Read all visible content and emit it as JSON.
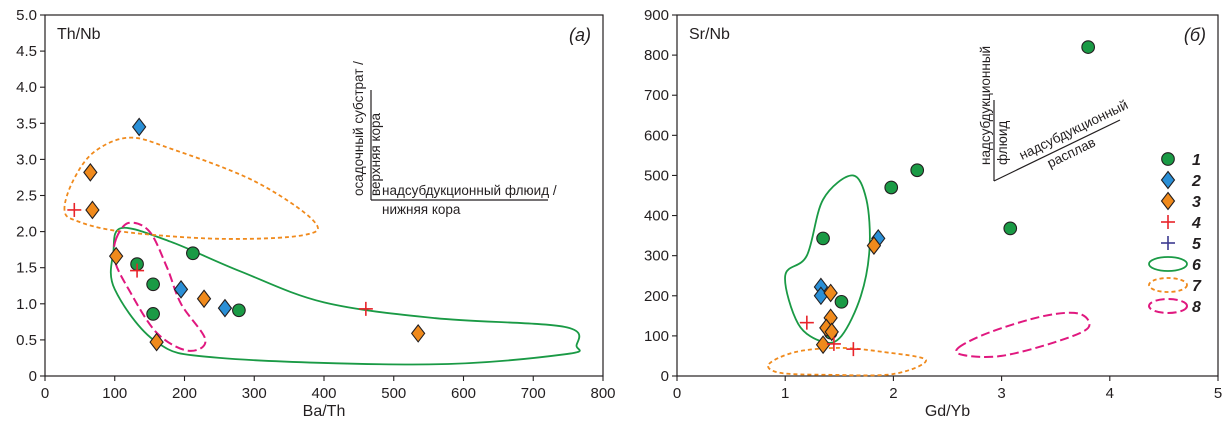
{
  "colors": {
    "circle": "#1a9a45",
    "blue_diamond": "#2a8fd6",
    "orange_diamond": "#f08a1c",
    "cross_red": "#e8232a",
    "cross_purple": "#3c3a8f",
    "field_green": "#1a9a45",
    "field_orange": "#f08a1c",
    "field_magenta": "#e0187f",
    "axis": "#231f20"
  },
  "legend": {
    "items": [
      {
        "symbol": "circle",
        "label": "1"
      },
      {
        "symbol": "blue_diamond",
        "label": "2"
      },
      {
        "symbol": "orange_diamond",
        "label": "3"
      },
      {
        "symbol": "cross_red",
        "label": "4"
      },
      {
        "symbol": "cross_purple",
        "label": "5"
      },
      {
        "symbol": "field_green",
        "label": "6"
      },
      {
        "symbol": "field_orange",
        "label": "7"
      },
      {
        "symbol": "field_magenta",
        "label": "8"
      }
    ]
  },
  "chart_data": [
    {
      "type": "scatter",
      "panel_label": "(а)",
      "ylabel_inside": "Th/Nb",
      "xlabel": "Ba/Th",
      "xlim": [
        0,
        800
      ],
      "ylim": [
        0,
        5.0
      ],
      "x_ticks": [
        "0",
        "100",
        "200",
        "300",
        "400",
        "500",
        "600",
        "700",
        "800"
      ],
      "y_ticks": [
        "0",
        "0.5",
        "1.0",
        "1.5",
        "2.0",
        "2.5",
        "3.0",
        "3.5",
        "4.0",
        "4.5",
        "5.0"
      ],
      "annotations": {
        "vertical_line1": "осадочный субстрат /",
        "vertical_line2": "верхняя кора",
        "horizontal_line1": "надсубдукционный флюид /",
        "horizontal_line2": "нижняя кора"
      },
      "series": [
        {
          "symbol": "circle",
          "points": [
            [
              132,
              1.55
            ],
            [
              155,
              1.27
            ],
            [
              155,
              0.86
            ],
            [
              212,
              1.7
            ],
            [
              278,
              0.91
            ]
          ]
        },
        {
          "symbol": "blue_diamond",
          "points": [
            [
              135,
              3.45
            ],
            [
              195,
              1.2
            ],
            [
              258,
              0.94
            ]
          ]
        },
        {
          "symbol": "orange_diamond",
          "points": [
            [
              65,
              2.82
            ],
            [
              68,
              2.3
            ],
            [
              102,
              1.66
            ],
            [
              160,
              0.47
            ],
            [
              228,
              1.07
            ],
            [
              535,
              0.59
            ]
          ]
        },
        {
          "symbol": "cross_red",
          "points": [
            [
              42,
              2.3
            ],
            [
              132,
              1.46
            ],
            [
              460,
              0.93
            ]
          ]
        }
      ],
      "fields": [
        {
          "symbol": "field_green",
          "points": [
            [
              98,
              1.72
            ],
            [
              110,
              2.05
            ],
            [
              180,
              1.86
            ],
            [
              280,
              1.45
            ],
            [
              400,
              1.02
            ],
            [
              560,
              0.8
            ],
            [
              745,
              0.68
            ],
            [
              762,
              0.42
            ],
            [
              745,
              0.3
            ],
            [
              550,
              0.16
            ],
            [
              250,
              0.25
            ],
            [
              160,
              0.47
            ],
            [
              100,
              1.2
            ]
          ]
        },
        {
          "symbol": "field_orange",
          "points": [
            [
              28,
              2.3
            ],
            [
              40,
              2.7
            ],
            [
              70,
              3.1
            ],
            [
              120,
              3.3
            ],
            [
              180,
              3.15
            ],
            [
              300,
              2.7
            ],
            [
              385,
              2.15
            ],
            [
              370,
              1.95
            ],
            [
              250,
              1.9
            ],
            [
              110,
              2.0
            ],
            [
              45,
              2.15
            ]
          ]
        },
        {
          "symbol": "field_magenta",
          "points": [
            [
              102,
              1.9
            ],
            [
              120,
              2.12
            ],
            [
              150,
              2.0
            ],
            [
              175,
              1.5
            ],
            [
              195,
              1.0
            ],
            [
              230,
              0.5
            ],
            [
              205,
              0.35
            ],
            [
              160,
              0.6
            ],
            [
              120,
              1.2
            ],
            [
              100,
              1.6
            ]
          ]
        }
      ]
    },
    {
      "type": "scatter",
      "panel_label": "(б)",
      "ylabel_inside": "Sr/Nb",
      "xlabel": "Gd/Yb",
      "xlim": [
        0,
        5
      ],
      "ylim": [
        0,
        900
      ],
      "x_ticks": [
        "0",
        "1",
        "2",
        "3",
        "4",
        "5"
      ],
      "y_ticks": [
        "0",
        "100",
        "200",
        "300",
        "400",
        "500",
        "600",
        "700",
        "800",
        "900"
      ],
      "annotations": {
        "vertical_line1": "надсубдукционный",
        "vertical_line2": "флюид",
        "diagonal_line1": "надсубдукционный",
        "diagonal_line2": "расплав"
      },
      "series": [
        {
          "symbol": "circle",
          "points": [
            [
              1.35,
              343
            ],
            [
              1.52,
              185
            ],
            [
              1.42,
              108
            ],
            [
              1.98,
              470
            ],
            [
              2.22,
              513
            ],
            [
              3.08,
              368
            ],
            [
              3.8,
              820
            ]
          ]
        },
        {
          "symbol": "blue_diamond",
          "points": [
            [
              1.33,
              222
            ],
            [
              1.33,
              200
            ],
            [
              1.86,
              343
            ]
          ]
        },
        {
          "symbol": "orange_diamond",
          "points": [
            [
              1.42,
              207
            ],
            [
              1.42,
              145
            ],
            [
              1.38,
              120
            ],
            [
              1.43,
              110
            ],
            [
              1.35,
              78
            ],
            [
              1.82,
              325
            ]
          ]
        },
        {
          "symbol": "cross_red",
          "points": [
            [
              1.2,
              133
            ],
            [
              1.45,
              80
            ],
            [
              1.63,
              67
            ]
          ]
        }
      ],
      "fields": [
        {
          "symbol": "field_green",
          "points": [
            [
              1.2,
              300
            ],
            [
              1.35,
              440
            ],
            [
              1.62,
              500
            ],
            [
              1.75,
              440
            ],
            [
              1.78,
              320
            ],
            [
              1.7,
              200
            ],
            [
              1.52,
              100
            ],
            [
              1.35,
              85
            ],
            [
              1.12,
              130
            ],
            [
              1.0,
              250
            ]
          ]
        },
        {
          "symbol": "field_orange",
          "points": [
            [
              0.85,
              30
            ],
            [
              1.1,
              60
            ],
            [
              1.5,
              70
            ],
            [
              1.9,
              60
            ],
            [
              2.3,
              40
            ],
            [
              2.0,
              5
            ],
            [
              1.4,
              3
            ],
            [
              0.95,
              8
            ]
          ]
        },
        {
          "symbol": "field_magenta",
          "points": [
            [
              2.6,
              70
            ],
            [
              2.9,
              110
            ],
            [
              3.4,
              150
            ],
            [
              3.72,
              155
            ],
            [
              3.8,
              120
            ],
            [
              3.5,
              85
            ],
            [
              3.0,
              50
            ],
            [
              2.65,
              52
            ]
          ]
        }
      ]
    }
  ]
}
